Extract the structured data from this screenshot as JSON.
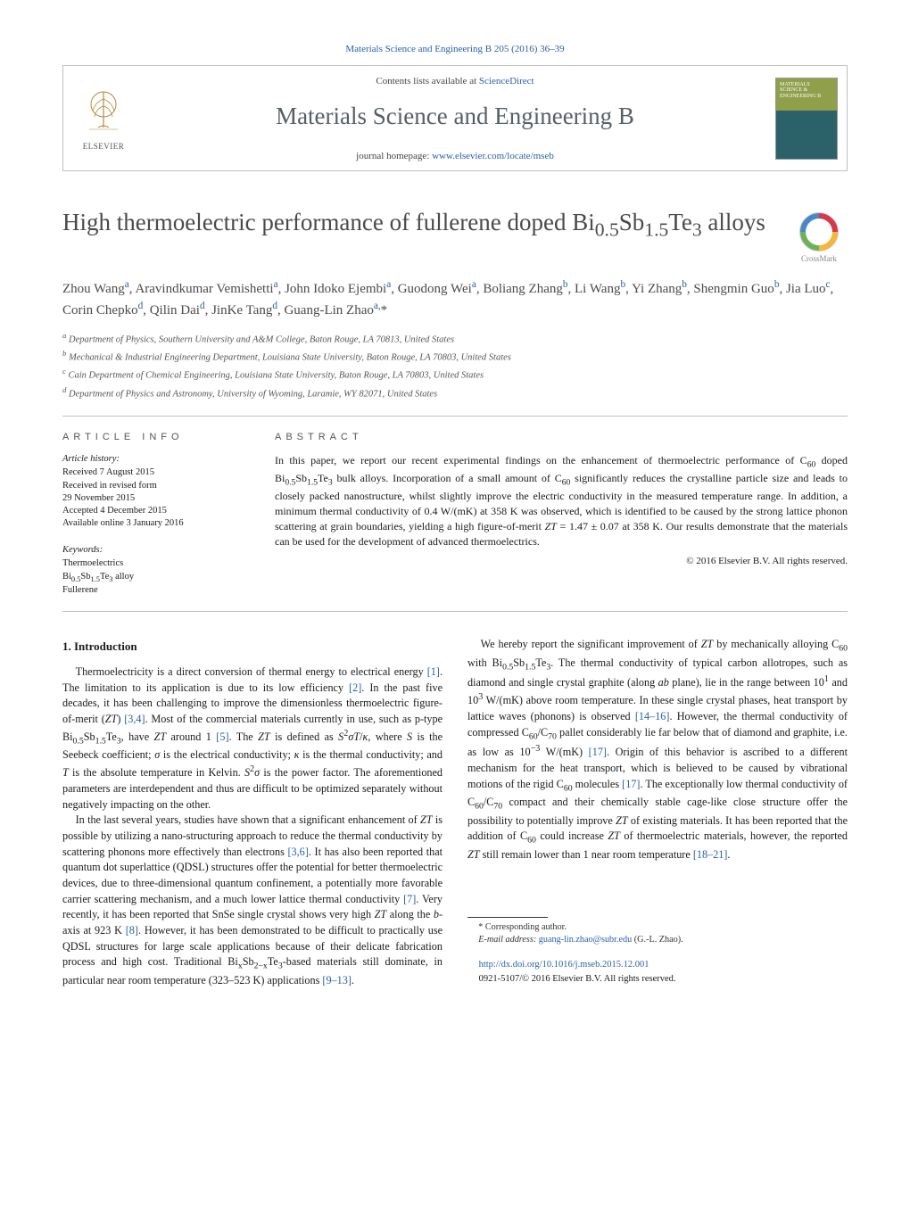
{
  "citation": "Materials Science and Engineering B 205 (2016) 36–39",
  "header": {
    "contents_prefix": "Contents lists available at ",
    "contents_link": "ScienceDirect",
    "journal_title": "Materials Science and Engineering B",
    "homepage_prefix": "journal homepage: ",
    "homepage_link": "www.elsevier.com/locate/mseb",
    "publisher_label": "ELSEVIER",
    "cover_text": "MATERIALS SCIENCE & ENGINEERING B"
  },
  "crossmark_label": "CrossMark",
  "title_html": "High thermoelectric performance of fullerene doped Bi<span class=\"sub\">0.5</span>Sb<span class=\"sub\">1.5</span>Te<span class=\"sub\">3</span> alloys",
  "authors_html": "Zhou Wang<span class=\"aff-sup\">a</span>, Aravindkumar Vemishetti<span class=\"aff-sup\">a</span>, John Idoko Ejembi<span class=\"aff-sup\">a</span>, Guodong Wei<span class=\"aff-sup\">a</span>, Boliang Zhang<span class=\"aff-sup\">b</span>, Li Wang<span class=\"aff-sup\">b</span>, Yi Zhang<span class=\"aff-sup\">b</span>, Shengmin Guo<span class=\"aff-sup\">b</span>, Jia Luo<span class=\"aff-sup\">c</span>, Corin Chepko<span class=\"aff-sup\">d</span>, Qilin Dai<span class=\"aff-sup\">d</span>, JinKe Tang<span class=\"aff-sup\">d</span>, Guang-Lin Zhao<span class=\"aff-sup\">a,</span>*",
  "affiliations": [
    "a Department of Physics, Southern University and A&M College, Baton Rouge, LA 70813, United States",
    "b Mechanical & Industrial Engineering Department, Louisiana State University, Baton Rouge, LA 70803, United States",
    "c Cain Department of Chemical Engineering, Louisiana State University, Baton Rouge, LA 70803, United States",
    "d Department of Physics and Astronomy, University of Wyoming, Laramie, WY 82071, United States"
  ],
  "info_label": "ARTICLE INFO",
  "abstract_label": "ABSTRACT",
  "history": {
    "heading": "Article history:",
    "lines": [
      "Received 7 August 2015",
      "Received in revised form",
      "29 November 2015",
      "Accepted 4 December 2015",
      "Available online 3 January 2016"
    ]
  },
  "keywords": {
    "heading": "Keywords:",
    "items_html": [
      "Thermoelectrics",
      "Bi<span class=\"sub\">0.5</span>Sb<span class=\"sub\">1.5</span>Te<span class=\"sub\">3</span> alloy",
      "Fullerene"
    ]
  },
  "abstract_html": "In this paper, we report our recent experimental findings on the enhancement of thermoelectric performance of C<span class=\"sub\">60</span> doped Bi<span class=\"sub\">0.5</span>Sb<span class=\"sub\">1.5</span>Te<span class=\"sub\">3</span> bulk alloys. Incorporation of a small amount of C<span class=\"sub\">60</span> significantly reduces the crystalline particle size and leads to closely packed nanostructure, whilst slightly improve the electric conductivity in the measured temperature range. In addition, a minimum thermal conductivity of 0.4 W/(mK) at 358 K was observed, which is identified to be caused by the strong lattice phonon scattering at grain boundaries, yielding a high figure-of-merit <i>ZT</i> = 1.47 ± 0.07 at 358 K. Our results demonstrate that the materials can be used for the development of advanced thermoelectrics.",
  "copyright": "© 2016 Elsevier B.V. All rights reserved.",
  "intro_heading": "1. Introduction",
  "body_paras_html": [
    "Thermoelectricity is a direct conversion of thermal energy to electrical energy <span class=\"ref\">[1]</span>. The limitation to its application is due to its low efficiency <span class=\"ref\">[2]</span>. In the past five decades, it has been challenging to improve the dimensionless thermoelectric figure-of-merit (<i>ZT</i>) <span class=\"ref\">[3,4]</span>. Most of the commercial materials currently in use, such as p-type Bi<span class=\"sub\">0.5</span>Sb<span class=\"sub\">1.5</span>Te<span class=\"sub\">3</span>, have <i>ZT</i> around 1 <span class=\"ref\">[5]</span>. The <i>ZT</i> is defined as <i>S</i><sup>2</sup><i>σT</i>/<i>κ</i>, where <i>S</i> is the Seebeck coefficient; <i>σ</i> is the electrical conductivity; <i>κ</i> is the thermal conductivity; and <i>T</i> is the absolute temperature in Kelvin. <i>S</i><sup>2</sup><i>σ</i> is the power factor. The aforementioned parameters are interdependent and thus are difficult to be optimized separately without negatively impacting on the other.",
    "In the last several years, studies have shown that a significant enhancement of <i>ZT</i> is possible by utilizing a nano-structuring approach to reduce the thermal conductivity by scattering phonons more effectively than electrons <span class=\"ref\">[3,6]</span>. It has also been reported that quantum dot superlattice (QDSL) structures offer the potential for better thermoelectric devices, due to three-dimensional quantum confinement, a potentially more favorable carrier scattering mechanism, and a much lower lattice thermal conductivity <span class=\"ref\">[7]</span>. Very recently, it has been reported that SnSe single crystal shows very high <i>ZT</i> along the <i>b</i>-axis at 923 K <span class=\"ref\">[8]</span>. However, it has been demonstrated to be difficult to practically use QDSL structures for large scale applications because of their delicate fabrication process and high cost. Traditional Bi<span class=\"sub\">x</span>Sb<span class=\"sub\">2−x</span>Te<span class=\"sub\">3</span>-based materials still dominate, in particular near room temperature (323–523 K) applications <span class=\"ref\">[9–13]</span>.",
    "We hereby report the significant improvement of <i>ZT</i> by mechanically alloying C<span class=\"sub\">60</span> with Bi<span class=\"sub\">0.5</span>Sb<span class=\"sub\">1.5</span>Te<span class=\"sub\">3</span>. The thermal conductivity of typical carbon allotropes, such as diamond and single crystal graphite (along <i>ab</i> plane), lie in the range between 10<sup>1</sup> and 10<sup>3</sup> W/(mK) above room temperature. In these single crystal phases, heat transport by lattice waves (phonons) is observed <span class=\"ref\">[14–16]</span>. However, the thermal conductivity of compressed C<span class=\"sub\">60</span>/C<span class=\"sub\">70</span> pallet considerably lie far below that of diamond and graphite, i.e. as low as 10<sup>−3</sup> W/(mK) <span class=\"ref\">[17]</span>. Origin of this behavior is ascribed to a different mechanism for the heat transport, which is believed to be caused by vibrational motions of the rigid C<span class=\"sub\">60</span> molecules <span class=\"ref\">[17]</span>. The exceptionally low thermal conductivity of C<span class=\"sub\">60</span>/C<span class=\"sub\">70</span> compact and their chemically stable cage-like close structure offer the possibility to potentially improve <i>ZT</i> of existing materials. It has been reported that the addition of C<span class=\"sub\">60</span> could increase <i>ZT</i> of thermoelectric materials, however, the reported <i>ZT</i> still remain lower than 1 near room temperature <span class=\"ref\">[18–21]</span>."
  ],
  "footnote": {
    "corresponding": "* Corresponding author.",
    "email_label": "E-mail address: ",
    "email": "guang-lin.zhao@subr.edu",
    "email_name": " (G.-L. Zhao)."
  },
  "doi": {
    "link": "http://dx.doi.org/10.1016/j.mseb.2015.12.001",
    "issn_line": "0921-5107/© 2016 Elsevier B.V. All rights reserved."
  },
  "colors": {
    "link": "#2860a8",
    "border": "#bfbfbf",
    "text_muted": "#555",
    "title_gray": "#4a4a4a"
  }
}
